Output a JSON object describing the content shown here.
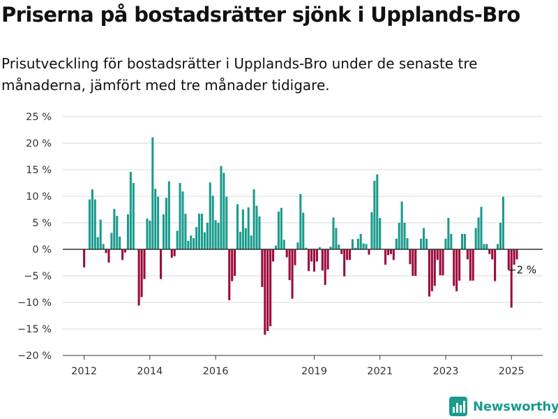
{
  "header": {
    "title": "Priserna på bostadsrätter sjönk i Upplands-Bro",
    "subtitle": "Prisutveckling för bostadsrätter i Upplands-Bro under de senaste tre månaderna, jämfört med tre månader tidigare."
  },
  "brand": {
    "name": "Newsworthy",
    "icon": "newsworthy-bar-chart-icon"
  },
  "colors": {
    "positive": "#1a9b8d",
    "negative": "#9b0a3c",
    "grid": "#d9d9d9",
    "zero_line": "#333333"
  },
  "chart_data": {
    "type": "bar",
    "ylim": [
      -20,
      25
    ],
    "yticks": [
      25,
      20,
      15,
      10,
      5,
      0,
      -5,
      -10,
      -15,
      -20
    ],
    "ytick_labels": [
      "25 %",
      "20 %",
      "15 %",
      "10 %",
      "5 %",
      "0 %",
      "−5 %",
      "−10 %",
      "−15 %",
      "−20 %"
    ],
    "xlim": [
      2011.35,
      2025.95
    ],
    "xtick_values": [
      2012,
      2014,
      2016,
      2019,
      2021,
      2023,
      2025
    ],
    "xtick_labels": [
      "2012",
      "2014",
      "2016",
      "2019",
      "2021",
      "2023",
      "2025"
    ],
    "grid": true,
    "last_label": "−2 %",
    "start": 2012.0,
    "step": 0.08333,
    "values": [
      -3.4,
      0,
      9.4,
      11.3,
      9.4,
      2.3,
      5.6,
      1.0,
      -0.7,
      -2.5,
      3.1,
      7.6,
      6.3,
      2.4,
      -2.0,
      -0.6,
      6.6,
      14.6,
      12.5,
      0,
      -10.6,
      -9.0,
      -5.6,
      5.8,
      5.4,
      21.1,
      11.4,
      9.9,
      -5.6,
      6.6,
      9.7,
      12.8,
      -1.6,
      -1.3,
      3.5,
      12.5,
      10.9,
      6.7,
      1.6,
      2.6,
      2.1,
      4.2,
      6.7,
      6.7,
      3.2,
      5.0,
      12.6,
      10.1,
      5.5,
      5.0,
      15.7,
      14.4,
      9.9,
      -9.6,
      -6.0,
      -5.0,
      8.5,
      3.3,
      7.5,
      4.0,
      7.9,
      2.6,
      11.3,
      8.2,
      6.2,
      -7.1,
      -16.1,
      -15.4,
      -14.5,
      -2.3,
      0.7,
      7.1,
      7.8,
      1.8,
      -1.5,
      -5.8,
      -9.3,
      -3.0,
      1.3,
      10.4,
      6.9,
      0.3,
      -4.1,
      -2.3,
      -4.2,
      -2.3,
      0.4,
      -4.0,
      -6.7,
      -3.8,
      0.5,
      6.0,
      4.0,
      0.9,
      -0.9,
      -5.1,
      -2.0,
      -2.0,
      1.9,
      0.3,
      2.0,
      2.9,
      1.1,
      1.0,
      -1.0,
      7.0,
      12.9,
      14.1,
      5.9,
      0,
      -2.9,
      -1.1,
      -0.9,
      -2.0,
      2.0,
      5.0,
      9.0,
      5.0,
      2.1,
      -2.8,
      -5.0,
      -5.0,
      0,
      2.0,
      4.0,
      2.0,
      -8.9,
      -7.9,
      -6.9,
      -2.0,
      -4.9,
      -4.9,
      2.0,
      5.9,
      2.9,
      -6.9,
      -7.9,
      -5.9,
      2.9,
      2.9,
      -1.9,
      -5.9,
      -5.9,
      4.0,
      6.0,
      8.0,
      1.0,
      1.0,
      -0.9,
      -1.9,
      -6.0,
      1.0,
      5.0,
      9.9,
      0,
      -3.9,
      -11.0,
      -2.9,
      -1.9
    ]
  }
}
